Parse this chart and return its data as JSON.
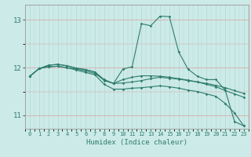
{
  "background_color": "#cceae7",
  "line_color": "#2e7d6e",
  "grid_color_red": "#d9a0a0",
  "grid_color_teal": "#b0d8d2",
  "xlabel": "Humidex (Indice chaleur)",
  "xlim": [
    -0.5,
    23.5
  ],
  "ylim": [
    10.72,
    13.32
  ],
  "yticks": [
    11,
    12,
    13
  ],
  "xticks": [
    0,
    1,
    2,
    3,
    4,
    5,
    6,
    7,
    8,
    9,
    10,
    11,
    12,
    13,
    14,
    15,
    16,
    17,
    18,
    19,
    20,
    21,
    22,
    23
  ],
  "lines": [
    {
      "x": [
        0,
        1,
        2,
        3,
        4,
        5,
        6,
        7,
        8,
        9,
        10,
        11,
        12,
        13,
        14,
        15,
        16,
        17,
        18,
        19,
        20,
        21,
        22,
        23
      ],
      "y": [
        11.82,
        11.98,
        12.05,
        12.07,
        12.04,
        11.99,
        11.96,
        11.91,
        11.73,
        11.67,
        11.97,
        12.02,
        12.92,
        12.88,
        13.08,
        13.07,
        12.33,
        11.97,
        11.82,
        11.75,
        11.75,
        11.53,
        10.87,
        10.78
      ]
    },
    {
      "x": [
        0,
        1,
        2,
        3,
        4,
        5,
        6,
        7,
        8,
        9,
        10,
        11,
        12,
        13,
        14,
        15,
        16,
        17,
        18,
        19,
        20,
        21,
        22,
        23
      ],
      "y": [
        11.82,
        11.98,
        12.02,
        12.03,
        12.0,
        11.97,
        11.93,
        11.88,
        11.74,
        11.67,
        11.75,
        11.8,
        11.83,
        11.83,
        11.82,
        11.8,
        11.77,
        11.74,
        11.7,
        11.67,
        11.63,
        11.58,
        11.52,
        11.46
      ]
    },
    {
      "x": [
        0,
        1,
        2,
        3,
        4,
        5,
        6,
        7,
        8,
        9,
        10,
        11,
        12,
        13,
        14,
        15,
        16,
        17,
        18,
        19,
        20,
        21,
        22,
        23
      ],
      "y": [
        11.82,
        11.98,
        12.02,
        12.03,
        12.0,
        11.95,
        11.9,
        11.85,
        11.65,
        11.55,
        11.55,
        11.57,
        11.58,
        11.6,
        11.62,
        11.6,
        11.57,
        11.53,
        11.5,
        11.45,
        11.4,
        11.25,
        11.05,
        10.78
      ]
    },
    {
      "x": [
        0,
        1,
        2,
        3,
        4,
        5,
        6,
        7,
        8,
        9,
        10,
        11,
        12,
        13,
        14,
        15,
        16,
        17,
        18,
        19,
        20,
        21,
        22,
        23
      ],
      "y": [
        11.82,
        11.98,
        12.05,
        12.07,
        12.04,
        11.99,
        11.96,
        11.91,
        11.75,
        11.67,
        11.68,
        11.7,
        11.73,
        11.77,
        11.8,
        11.78,
        11.76,
        11.73,
        11.7,
        11.65,
        11.6,
        11.52,
        11.45,
        11.38
      ]
    }
  ]
}
